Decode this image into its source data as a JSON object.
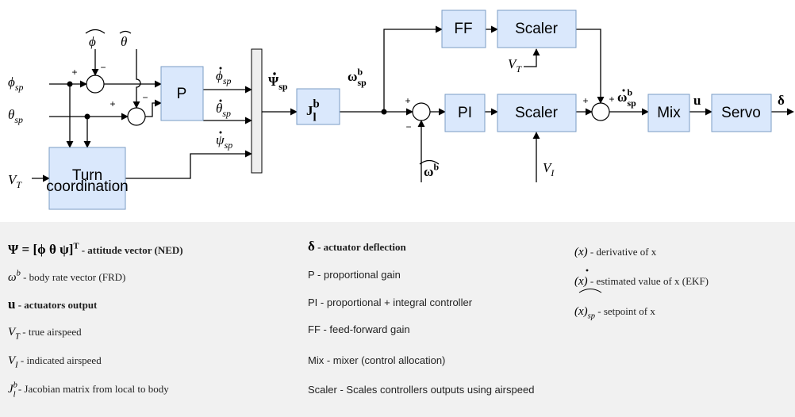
{
  "blocks": {
    "ff": "FF",
    "scaler_top": "Scaler",
    "p": "P",
    "jacobian": {
      "base": "J",
      "sub": "l",
      "sup": "b"
    },
    "pi": "PI",
    "scaler_bottom": "Scaler",
    "mix": "Mix",
    "servo": "Servo",
    "turn_coordination": [
      "Turn",
      "coordination"
    ]
  },
  "signals": {
    "phi_hat": {
      "base": "ϕ"
    },
    "theta_hat": {
      "base": "θ"
    },
    "phi_sp": {
      "base": "ϕ",
      "sub": "sp"
    },
    "theta_sp": {
      "base": "θ",
      "sub": "sp"
    },
    "v_t_in": {
      "base": "V",
      "sub": "T"
    },
    "phi_dot_sp": {
      "base": "ϕ",
      "sub": "sp"
    },
    "theta_dot_sp": {
      "base": "θ",
      "sub": "sp"
    },
    "psi_dot_sp": {
      "base": "ψ",
      "sub": "sp"
    },
    "psi_vec_dot_sp": {
      "base": "Ψ",
      "sub": "sp"
    },
    "omega_sp": {
      "base": "ω",
      "sub": "sp",
      "sup": "b"
    },
    "omega_hat": {
      "base": "ω",
      "sup": "b"
    },
    "v_t_scaler": {
      "base": "V",
      "sub": "T"
    },
    "v_i": {
      "base": "V",
      "sub": "I"
    },
    "omega_dot_sp": {
      "base": "ω",
      "sub": "sp",
      "sup": "b"
    },
    "u": {
      "base": "u"
    },
    "delta": {
      "base": "δ"
    }
  },
  "summer_signs": [
    [
      "+",
      "−"
    ],
    [
      "+",
      "−"
    ],
    [
      "+",
      "−"
    ],
    [
      "+",
      "+"
    ]
  ],
  "legend": {
    "column1": [
      {
        "base": "Ψ = [ϕ  θ  ψ]",
        "sup": "T",
        "text": " - attitude vector (NED)"
      },
      {
        "base": "ω",
        "sup": "b",
        "text": " - body rate vector (FRD)"
      },
      {
        "base": "u",
        "text": " - actuators output"
      },
      {
        "base": "V",
        "sub": "T",
        "text": " - true airspeed"
      },
      {
        "base": "V",
        "sub": "I",
        "text": " - indicated airspeed"
      },
      {
        "base": "J",
        "sub": "l",
        "sup": "b",
        "text": " - Jacobian matrix from local to body"
      }
    ],
    "column2": [
      {
        "base": "δ",
        "text": " - actuator deflection"
      },
      {
        "text": "P - proportional gain"
      },
      {
        "text": "PI - proportional + integral controller"
      },
      {
        "text": "FF - feed-forward gain"
      },
      {
        "text": "Mix - mixer (control allocation)"
      },
      {
        "text": "Scaler - Scales controllers outputs using airspeed"
      }
    ],
    "column3": [
      {
        "base": "(x)",
        "text": " - derivative of x"
      },
      {
        "base": "(x)",
        "text": " - estimated value of x (EKF)"
      },
      {
        "base": "(x)",
        "sub": "sp",
        "text": " - setpoint of x"
      }
    ]
  }
}
